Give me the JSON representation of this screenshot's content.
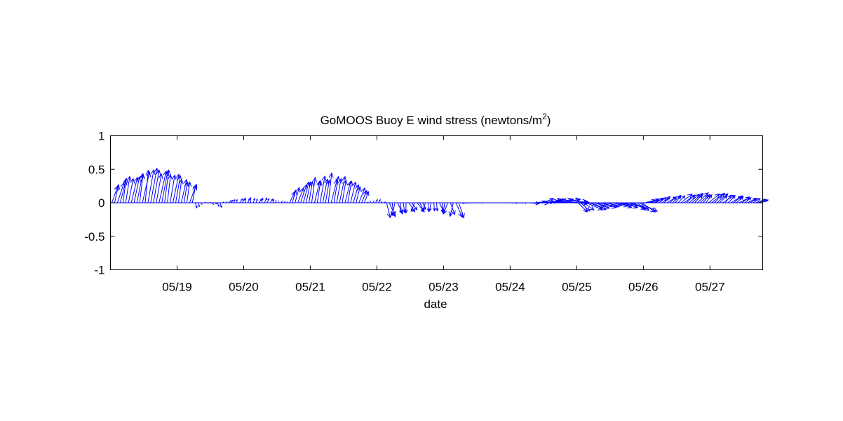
{
  "chart_data": {
    "type": "quiver",
    "title": "GoMOOS Buoy E wind stress (newtons/m",
    "title_superscript": "2",
    "title_suffix": ")",
    "xlabel": "date",
    "ylabel": "",
    "xlim": [
      "05/18 00:00",
      "05/27 19:00"
    ],
    "ylim": [
      -1,
      1
    ],
    "y_ticks": [
      1,
      0.5,
      0,
      -0.5,
      -1
    ],
    "y_tick_labels": [
      "1",
      "0.5",
      "0",
      "-0.5",
      "-1"
    ],
    "x_ticks": [
      "05/19",
      "05/20",
      "05/21",
      "05/22",
      "05/23",
      "05/24",
      "05/25",
      "05/26",
      "05/27"
    ],
    "grid": false,
    "legend": "none",
    "arrow_color": "#0000ff",
    "series": [
      {
        "segments": [
          {
            "start": "05/18 00:00",
            "end": "05/19 06:00",
            "u": [
              0.02,
              0.12
            ],
            "v": [
              0.15,
              0.52
            ]
          },
          {
            "start": "05/19 06:00",
            "end": "05/19 16:00",
            "u": [
              0.01,
              0.04
            ],
            "v": [
              -0.12,
              0.02
            ]
          },
          {
            "start": "05/19 16:00",
            "end": "05/20 16:00",
            "u": [
              -0.03,
              0.05
            ],
            "v": [
              -0.01,
              0.08
            ]
          },
          {
            "start": "05/20 16:00",
            "end": "05/21 20:00",
            "u": [
              0.03,
              0.1
            ],
            "v": [
              0.05,
              0.45
            ]
          },
          {
            "start": "05/21 20:00",
            "end": "05/22 03:00",
            "u": [
              0.0,
              0.04
            ],
            "v": [
              -0.01,
              0.05
            ]
          },
          {
            "start": "05/22 03:00",
            "end": "05/23 06:00",
            "u": [
              -0.15,
              0.12
            ],
            "v": [
              -0.28,
              -0.08
            ]
          },
          {
            "start": "05/23 06:00",
            "end": "05/24 06:00",
            "u": [
              -0.05,
              0.05
            ],
            "v": [
              -0.02,
              0.0
            ]
          },
          {
            "start": "05/24 06:00",
            "end": "05/25 00:00",
            "u": [
              0.05,
              0.35
            ],
            "v": [
              -0.05,
              0.08
            ]
          },
          {
            "start": "05/25 00:00",
            "end": "05/26 00:00",
            "u": [
              0.02,
              0.3
            ],
            "v": [
              -0.18,
              -0.03
            ]
          },
          {
            "start": "05/26 00:00",
            "end": "05/27 19:00",
            "u": [
              0.05,
              0.2
            ],
            "v": [
              0.0,
              0.15
            ]
          }
        ]
      }
    ]
  }
}
